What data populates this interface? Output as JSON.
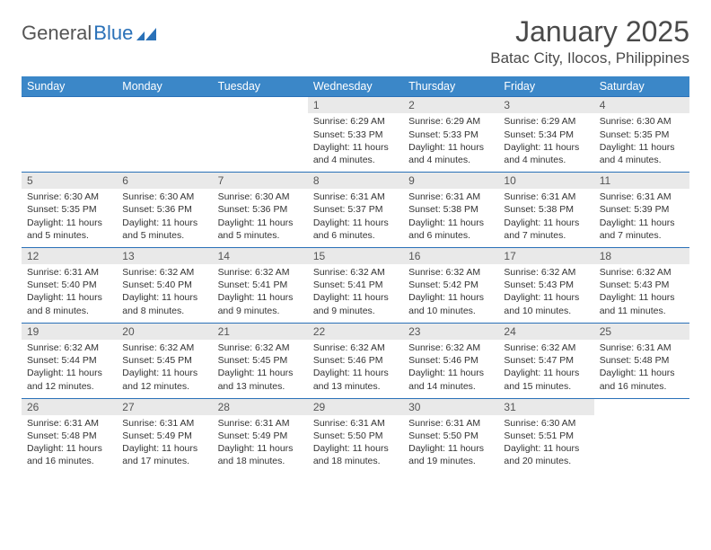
{
  "logo": {
    "textA": "General",
    "textB": "Blue"
  },
  "title": "January 2025",
  "location": "Batac City, Ilocos, Philippines",
  "colors": {
    "headerBlue": "#3b87c8",
    "ruleBlue": "#2a71b8",
    "dayBarGray": "#e9e9e9",
    "text": "#333333"
  },
  "weekdays": [
    "Sunday",
    "Monday",
    "Tuesday",
    "Wednesday",
    "Thursday",
    "Friday",
    "Saturday"
  ],
  "weeks": [
    [
      {
        "empty": true
      },
      {
        "empty": true
      },
      {
        "empty": true
      },
      {
        "num": "1",
        "sunrise": "Sunrise: 6:29 AM",
        "sunset": "Sunset: 5:33 PM",
        "daylight": "Daylight: 11 hours and 4 minutes."
      },
      {
        "num": "2",
        "sunrise": "Sunrise: 6:29 AM",
        "sunset": "Sunset: 5:33 PM",
        "daylight": "Daylight: 11 hours and 4 minutes."
      },
      {
        "num": "3",
        "sunrise": "Sunrise: 6:29 AM",
        "sunset": "Sunset: 5:34 PM",
        "daylight": "Daylight: 11 hours and 4 minutes."
      },
      {
        "num": "4",
        "sunrise": "Sunrise: 6:30 AM",
        "sunset": "Sunset: 5:35 PM",
        "daylight": "Daylight: 11 hours and 4 minutes."
      }
    ],
    [
      {
        "num": "5",
        "sunrise": "Sunrise: 6:30 AM",
        "sunset": "Sunset: 5:35 PM",
        "daylight": "Daylight: 11 hours and 5 minutes."
      },
      {
        "num": "6",
        "sunrise": "Sunrise: 6:30 AM",
        "sunset": "Sunset: 5:36 PM",
        "daylight": "Daylight: 11 hours and 5 minutes."
      },
      {
        "num": "7",
        "sunrise": "Sunrise: 6:30 AM",
        "sunset": "Sunset: 5:36 PM",
        "daylight": "Daylight: 11 hours and 5 minutes."
      },
      {
        "num": "8",
        "sunrise": "Sunrise: 6:31 AM",
        "sunset": "Sunset: 5:37 PM",
        "daylight": "Daylight: 11 hours and 6 minutes."
      },
      {
        "num": "9",
        "sunrise": "Sunrise: 6:31 AM",
        "sunset": "Sunset: 5:38 PM",
        "daylight": "Daylight: 11 hours and 6 minutes."
      },
      {
        "num": "10",
        "sunrise": "Sunrise: 6:31 AM",
        "sunset": "Sunset: 5:38 PM",
        "daylight": "Daylight: 11 hours and 7 minutes."
      },
      {
        "num": "11",
        "sunrise": "Sunrise: 6:31 AM",
        "sunset": "Sunset: 5:39 PM",
        "daylight": "Daylight: 11 hours and 7 minutes."
      }
    ],
    [
      {
        "num": "12",
        "sunrise": "Sunrise: 6:31 AM",
        "sunset": "Sunset: 5:40 PM",
        "daylight": "Daylight: 11 hours and 8 minutes."
      },
      {
        "num": "13",
        "sunrise": "Sunrise: 6:32 AM",
        "sunset": "Sunset: 5:40 PM",
        "daylight": "Daylight: 11 hours and 8 minutes."
      },
      {
        "num": "14",
        "sunrise": "Sunrise: 6:32 AM",
        "sunset": "Sunset: 5:41 PM",
        "daylight": "Daylight: 11 hours and 9 minutes."
      },
      {
        "num": "15",
        "sunrise": "Sunrise: 6:32 AM",
        "sunset": "Sunset: 5:41 PM",
        "daylight": "Daylight: 11 hours and 9 minutes."
      },
      {
        "num": "16",
        "sunrise": "Sunrise: 6:32 AM",
        "sunset": "Sunset: 5:42 PM",
        "daylight": "Daylight: 11 hours and 10 minutes."
      },
      {
        "num": "17",
        "sunrise": "Sunrise: 6:32 AM",
        "sunset": "Sunset: 5:43 PM",
        "daylight": "Daylight: 11 hours and 10 minutes."
      },
      {
        "num": "18",
        "sunrise": "Sunrise: 6:32 AM",
        "sunset": "Sunset: 5:43 PM",
        "daylight": "Daylight: 11 hours and 11 minutes."
      }
    ],
    [
      {
        "num": "19",
        "sunrise": "Sunrise: 6:32 AM",
        "sunset": "Sunset: 5:44 PM",
        "daylight": "Daylight: 11 hours and 12 minutes."
      },
      {
        "num": "20",
        "sunrise": "Sunrise: 6:32 AM",
        "sunset": "Sunset: 5:45 PM",
        "daylight": "Daylight: 11 hours and 12 minutes."
      },
      {
        "num": "21",
        "sunrise": "Sunrise: 6:32 AM",
        "sunset": "Sunset: 5:45 PM",
        "daylight": "Daylight: 11 hours and 13 minutes."
      },
      {
        "num": "22",
        "sunrise": "Sunrise: 6:32 AM",
        "sunset": "Sunset: 5:46 PM",
        "daylight": "Daylight: 11 hours and 13 minutes."
      },
      {
        "num": "23",
        "sunrise": "Sunrise: 6:32 AM",
        "sunset": "Sunset: 5:46 PM",
        "daylight": "Daylight: 11 hours and 14 minutes."
      },
      {
        "num": "24",
        "sunrise": "Sunrise: 6:32 AM",
        "sunset": "Sunset: 5:47 PM",
        "daylight": "Daylight: 11 hours and 15 minutes."
      },
      {
        "num": "25",
        "sunrise": "Sunrise: 6:31 AM",
        "sunset": "Sunset: 5:48 PM",
        "daylight": "Daylight: 11 hours and 16 minutes."
      }
    ],
    [
      {
        "num": "26",
        "sunrise": "Sunrise: 6:31 AM",
        "sunset": "Sunset: 5:48 PM",
        "daylight": "Daylight: 11 hours and 16 minutes."
      },
      {
        "num": "27",
        "sunrise": "Sunrise: 6:31 AM",
        "sunset": "Sunset: 5:49 PM",
        "daylight": "Daylight: 11 hours and 17 minutes."
      },
      {
        "num": "28",
        "sunrise": "Sunrise: 6:31 AM",
        "sunset": "Sunset: 5:49 PM",
        "daylight": "Daylight: 11 hours and 18 minutes."
      },
      {
        "num": "29",
        "sunrise": "Sunrise: 6:31 AM",
        "sunset": "Sunset: 5:50 PM",
        "daylight": "Daylight: 11 hours and 18 minutes."
      },
      {
        "num": "30",
        "sunrise": "Sunrise: 6:31 AM",
        "sunset": "Sunset: 5:50 PM",
        "daylight": "Daylight: 11 hours and 19 minutes."
      },
      {
        "num": "31",
        "sunrise": "Sunrise: 6:30 AM",
        "sunset": "Sunset: 5:51 PM",
        "daylight": "Daylight: 11 hours and 20 minutes."
      },
      {
        "empty": true
      }
    ]
  ]
}
